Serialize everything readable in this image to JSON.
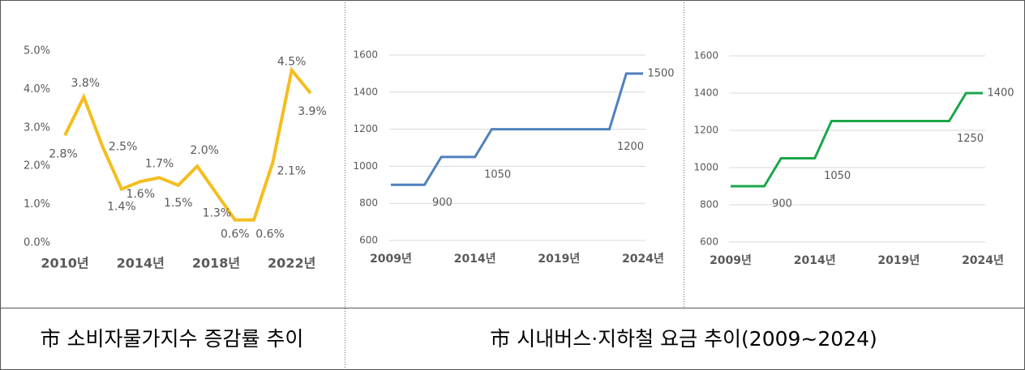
{
  "chart_data": [
    {
      "type": "line",
      "color": "#f5bd1f",
      "categories": [
        "2010년",
        null,
        null,
        null,
        "2014년",
        null,
        null,
        null,
        "2018년",
        null,
        null,
        null,
        "2022년",
        null
      ],
      "values": [
        2.8,
        3.8,
        2.5,
        1.4,
        1.6,
        1.7,
        1.5,
        2.0,
        1.3,
        0.6,
        0.6,
        2.1,
        4.5,
        3.9
      ],
      "value_labels": [
        "2.8%",
        "3.8%",
        "2.5%",
        "1.4%",
        "1.6%",
        "1.7%",
        "1.5%",
        "2.0%",
        "1.3%",
        "0.6%",
        "0.6%",
        "2.1%",
        "4.5%",
        "3.9%"
      ],
      "ylim": [
        0,
        5
      ],
      "yticks": [
        {
          "value": 0,
          "label": "0.0%"
        },
        {
          "value": 1,
          "label": "1.0%"
        },
        {
          "value": 2,
          "label": "2.0%"
        },
        {
          "value": 3,
          "label": "3.0%"
        },
        {
          "value": 4,
          "label": "4.0%"
        },
        {
          "value": 5,
          "label": "5.0%"
        }
      ],
      "grid": false
    },
    {
      "type": "line",
      "color": "#4f81bd",
      "categories": [
        "2009년",
        null,
        null,
        null,
        null,
        "2014년",
        null,
        null,
        null,
        null,
        "2019년",
        null,
        null,
        null,
        null,
        "2024년"
      ],
      "values": [
        900,
        900,
        900,
        1050,
        1050,
        1050,
        1200,
        1200,
        1200,
        1200,
        1200,
        1200,
        1200,
        1200,
        1500,
        1500
      ],
      "ylim": [
        600,
        1600
      ],
      "yticks": [
        600,
        800,
        1000,
        1200,
        1400,
        1600
      ],
      "grid": true
    },
    {
      "type": "line",
      "color": "#1aa74a",
      "categories": [
        "2009년",
        null,
        null,
        null,
        null,
        "2014년",
        null,
        null,
        null,
        null,
        "2019년",
        null,
        null,
        null,
        null,
        "2024년"
      ],
      "values": [
        900,
        900,
        900,
        1050,
        1050,
        1050,
        1250,
        1250,
        1250,
        1250,
        1250,
        1250,
        1250,
        1250,
        1400,
        1400
      ],
      "ylim": [
        600,
        1600
      ],
      "yticks": [
        600,
        800,
        1000,
        1200,
        1400,
        1600
      ],
      "grid": true
    }
  ],
  "captions": [
    "市 소비자물가지수 증감률 추이",
    "市 시내버스·지하철 요금 추이(2009~2024)"
  ]
}
